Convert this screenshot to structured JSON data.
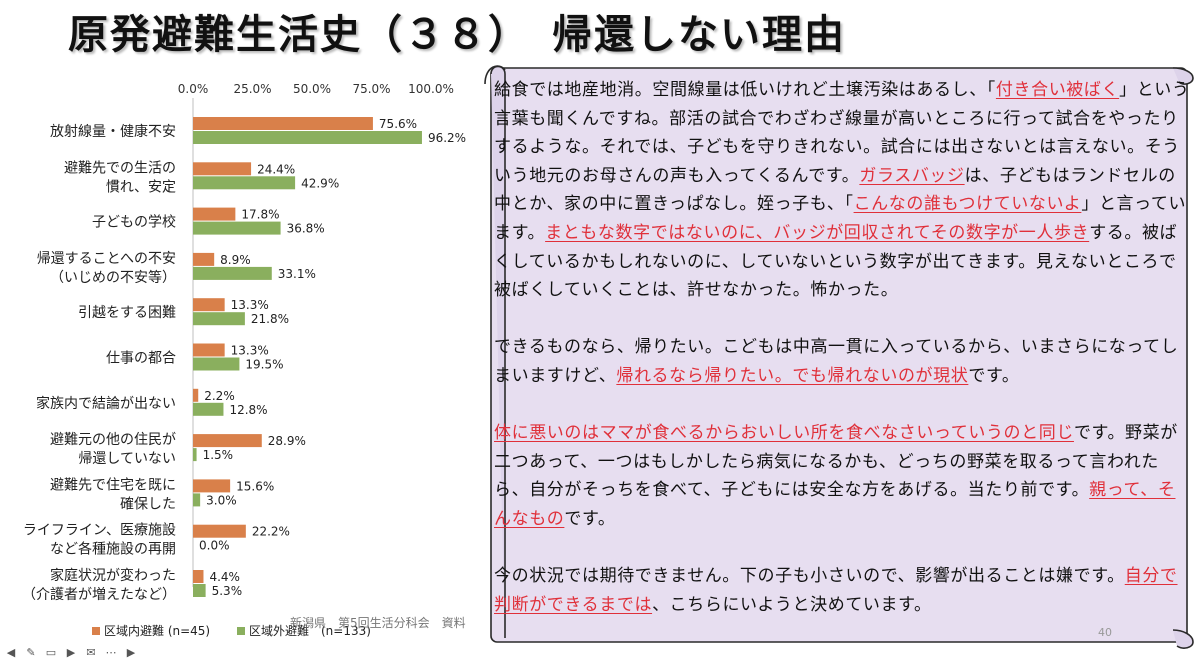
{
  "title": "原発避難生活史（３８）　帰還しない理由",
  "chart_data": {
    "type": "bar",
    "orientation": "horizontal",
    "categories": [
      [
        "放射線量・健康不安"
      ],
      [
        "避難先での生活の",
        "慣れ、安定"
      ],
      [
        "子どもの学校"
      ],
      [
        "帰還することへの不安",
        "（いじめの不安等）"
      ],
      [
        "引越をする困難"
      ],
      [
        "仕事の都合"
      ],
      [
        "家族内で結論が出ない"
      ],
      [
        "避難元の他の住民が",
        "帰還していない"
      ],
      [
        "避難先で住宅を既に",
        "確保した"
      ],
      [
        "ライフライン、医療施設",
        "など各種施設の再開"
      ],
      [
        "家庭状況が変わった",
        "（介護者が増えたなど）"
      ]
    ],
    "series": [
      {
        "name": "区域内避難 (n=45)",
        "color": "#d9804a",
        "values": [
          75.6,
          24.4,
          17.8,
          8.9,
          13.3,
          13.3,
          2.2,
          28.9,
          15.6,
          22.2,
          4.4
        ],
        "labels": [
          "75.6%",
          "24.4%",
          "17.8%",
          "8.9%",
          "13.3%",
          "13.3%",
          "2.2%",
          "28.9%",
          "15.6%",
          "22.2%",
          "4.4%"
        ]
      },
      {
        "name": "区域外避難　(n=133)",
        "color": "#8aaf5e",
        "values": [
          96.2,
          42.9,
          36.8,
          33.1,
          21.8,
          19.5,
          12.8,
          1.5,
          3.0,
          0.0,
          5.3
        ],
        "labels": [
          "96.2%",
          "42.9%",
          "36.8%",
          "33.1%",
          "21.8%",
          "19.5%",
          "12.8%",
          "1.5%",
          "3.0%",
          "0.0%",
          "5.3%"
        ]
      }
    ],
    "xticks": [
      "0.0%",
      "25.0%",
      "50.0%",
      "75.0%",
      "100.0%"
    ],
    "xlim": [
      0,
      100
    ],
    "legend_position": "bottom"
  },
  "paragraphs": [
    [
      {
        "t": "給食では地産地消。空間線量は低いけれど土壌汚染はあるし、「"
      },
      {
        "t": "付き合い被ばく",
        "hl": true
      },
      {
        "t": "」という言葉も聞くんですね。部活の試合でわざわざ線量が高いところに行って試合をやったりするような。それでは、子どもを守りきれない。試合には出さないとは言えない。そういう地元のお母さんの声も入ってくるんです。"
      },
      {
        "t": "ガラスバッジ",
        "hl": true
      },
      {
        "t": "は、子どもはランドセルの中とか、家の中に置きっぱなし。姪っ子も、「"
      },
      {
        "t": "こんなの誰もつけていないよ",
        "hl": true
      },
      {
        "t": "」と言っています。"
      },
      {
        "t": "まともな数字ではないのに、バッジが回収されてその数字が一人歩き",
        "hl": true
      },
      {
        "t": "する。被ばくしているかもしれないのに、していないという数字が出てきます。見えないところで被ばくしていくことは、許せなかった。怖かった。"
      }
    ],
    [
      {
        "t": "できるものなら、帰りたい。こどもは中高一貫に入っているから、いまさらになってしまいますけど、"
      },
      {
        "t": "帰れるなら帰りたい。でも帰れないのが現状",
        "hl": true
      },
      {
        "t": "です。"
      }
    ],
    [
      {
        "t": "体に悪いのはママが食べるからおいしい所を食べなさいっていうのと同じ",
        "hl": true
      },
      {
        "t": "です。野菜が二つあって、一つはもしかしたら病気になるかも、どっちの野菜を取るって言われたら、自分がそっちを食べて、子どもには安全な方をあげる。当たり前です。"
      },
      {
        "t": "親って、そんなもの",
        "hl": true
      },
      {
        "t": "です。"
      }
    ],
    [
      {
        "t": "今の状況では期待できません。下の子も小さいので、影響が出ることは嫌です。"
      },
      {
        "t": "自分で判断ができるまでは",
        "hl": true
      },
      {
        "t": "、こちらにいようと決めています。"
      }
    ]
  ],
  "footer": "新潟県　第5回生活分科会　資料",
  "page_number": "40",
  "toolbar_icons": [
    "prev-arrow-icon",
    "pen-icon",
    "captions-icon",
    "video-icon",
    "mail-icon",
    "more-icon",
    "next-arrow-icon"
  ]
}
